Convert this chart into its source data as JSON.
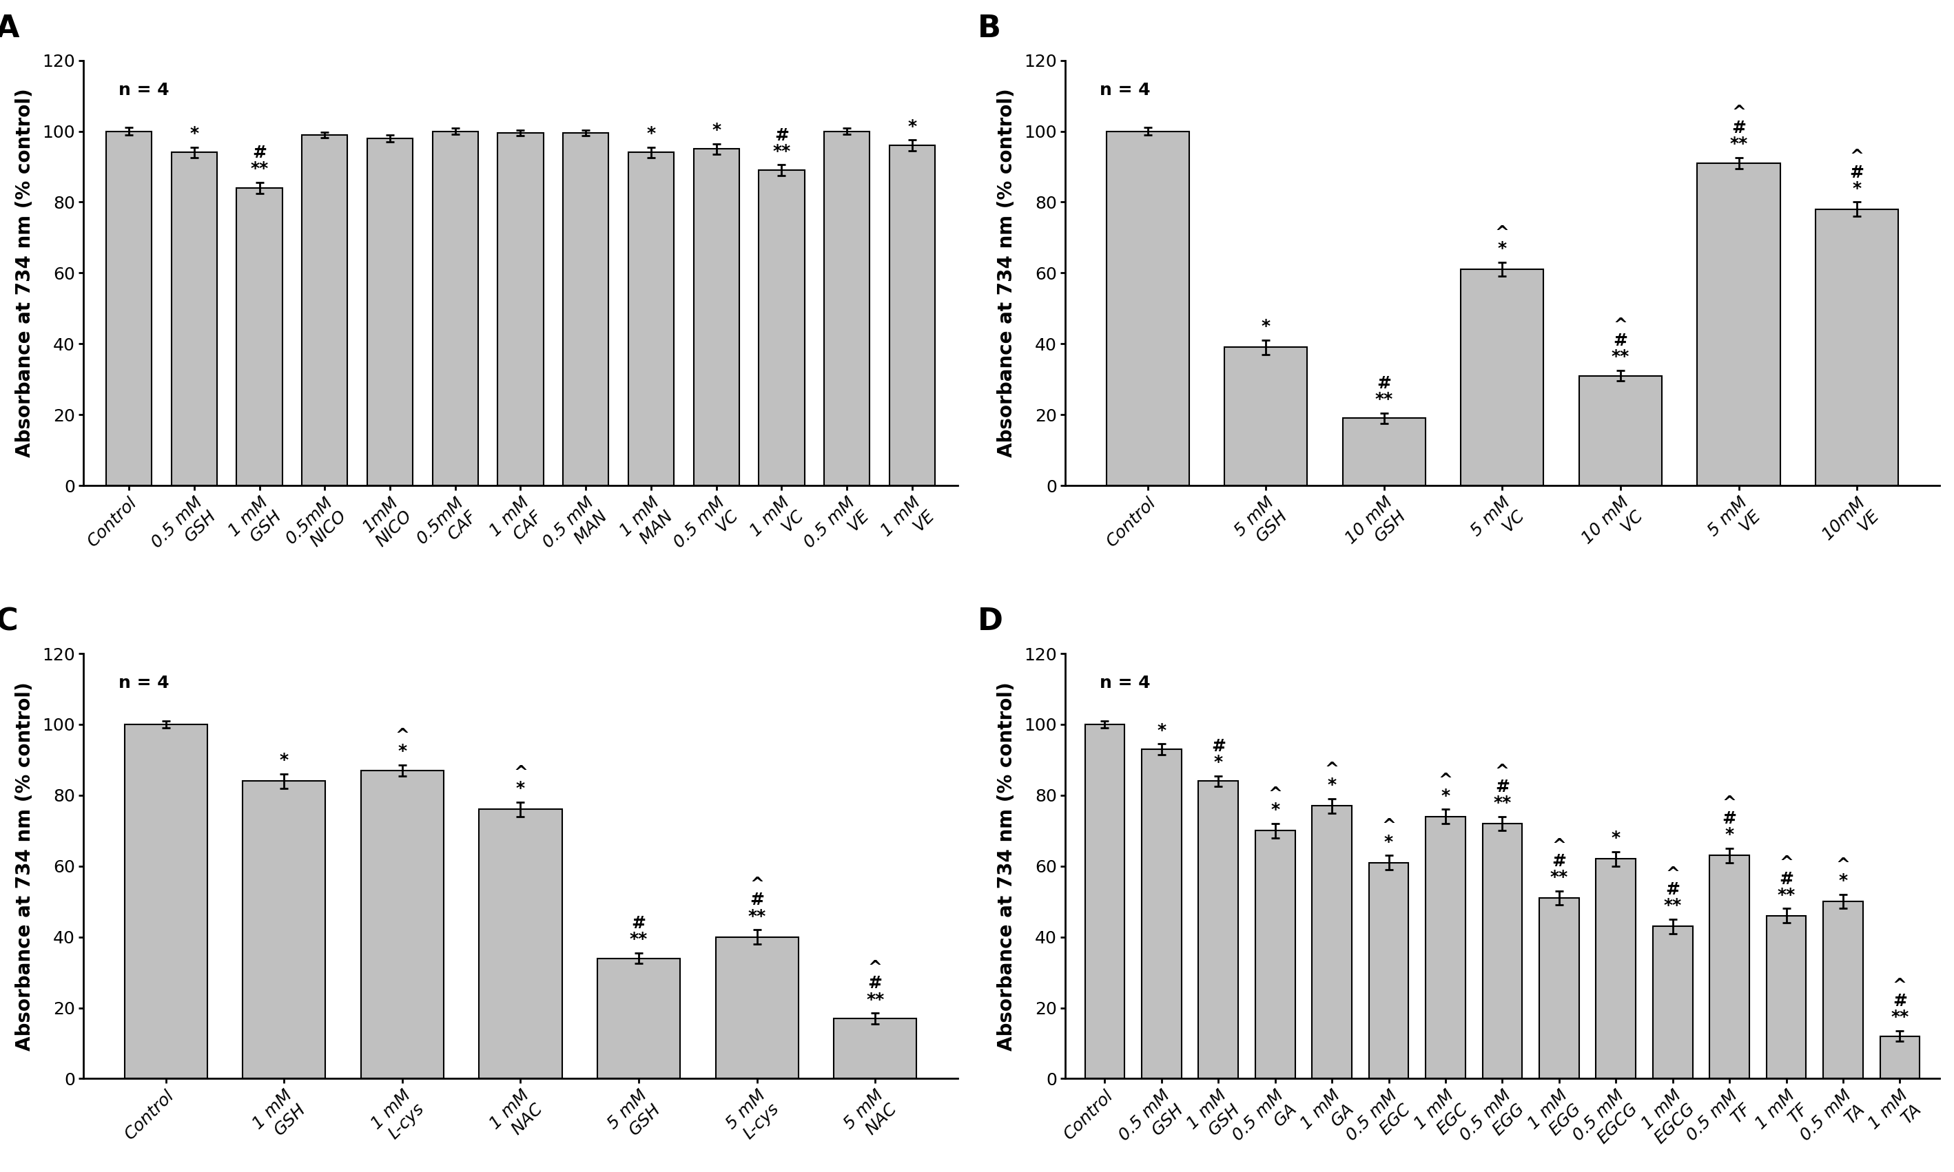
{
  "panel_A": {
    "label": "A",
    "categories": [
      "Control",
      "0.5 mM\nGSH",
      "1 mM\nGSH",
      "0.5mM\nNICO",
      "1mM\nNICO",
      "0.5mM\nCAF",
      "1 mM\nCAF",
      "0.5 mM\nMAN",
      "1 mM\nMAN",
      "0.5 mM\nVC",
      "1 mM\nVC",
      "0.5 mM\nVE",
      "1 mM\nVE"
    ],
    "values": [
      100,
      94,
      84,
      99,
      98,
      100,
      99.5,
      99.5,
      94,
      95,
      89,
      100,
      96
    ],
    "errors": [
      1.0,
      1.5,
      1.5,
      0.8,
      1.0,
      0.8,
      0.8,
      0.8,
      1.5,
      1.5,
      1.5,
      0.8,
      1.5
    ],
    "ann": {
      "1": [
        "*"
      ],
      "2": [
        "#",
        "**"
      ],
      "8": [
        "*"
      ],
      "9": [
        "*"
      ],
      "10": [
        "#",
        "**"
      ],
      "12": [
        "*"
      ]
    },
    "ylim": [
      0,
      120
    ],
    "yticks": [
      0,
      20,
      40,
      60,
      80,
      100,
      120
    ],
    "note": "n = 4"
  },
  "panel_B": {
    "label": "B",
    "categories": [
      "Control",
      "5 mM\nGSH",
      "10 mM\nGSH",
      "5 mM\nVC",
      "10 mM\nVC",
      "5 mM\nVE",
      "10mM\nVE"
    ],
    "values": [
      100,
      39,
      19,
      61,
      31,
      91,
      78
    ],
    "errors": [
      1.0,
      2.0,
      1.5,
      2.0,
      1.5,
      1.5,
      2.0
    ],
    "ann": {
      "1": [
        "*"
      ],
      "2": [
        "#",
        "**"
      ],
      "3": [
        "^",
        "*"
      ],
      "4": [
        "^",
        "#",
        "**"
      ],
      "5": [
        "^",
        "#",
        "**"
      ],
      "6": [
        "^",
        "#",
        "*"
      ]
    },
    "ylim": [
      0,
      120
    ],
    "yticks": [
      0,
      20,
      40,
      60,
      80,
      100,
      120
    ],
    "note": "n = 4"
  },
  "panel_C": {
    "label": "C",
    "categories": [
      "Control",
      "1 mM\nGSH",
      "1 mM\nL-cys",
      "1 mM\nNAC",
      "5 mM\nGSH",
      "5 mM\nL-cys",
      "5 mM\nNAC"
    ],
    "values": [
      100,
      84,
      87,
      76,
      34,
      40,
      17
    ],
    "errors": [
      1.0,
      2.0,
      1.5,
      2.0,
      1.5,
      2.0,
      1.5
    ],
    "ann": {
      "1": [
        "*"
      ],
      "2": [
        "^",
        "*"
      ],
      "3": [
        "^",
        "*"
      ],
      "4": [
        "#",
        "**"
      ],
      "5": [
        "^",
        "#",
        "**"
      ],
      "6": [
        "^",
        "#",
        "**"
      ]
    },
    "ylim": [
      0,
      120
    ],
    "yticks": [
      0,
      20,
      40,
      60,
      80,
      100,
      120
    ],
    "note": "n = 4"
  },
  "panel_D": {
    "label": "D",
    "categories": [
      "Control",
      "0.5 mM\nGSH",
      "1 mM\nGSH",
      "0.5 mM\nGA",
      "1 mM\nGA",
      "0.5 mM\nEGC",
      "1 mM\nEGC",
      "0.5 mM\nEGG",
      "1 mM\nEGG",
      "0.5 mM\nEGCG",
      "1 mM\nEGCG",
      "0.5 mM\nTF",
      "1 mM\nTF",
      "0.5 mM\nTA",
      "1 mM\nTA"
    ],
    "values": [
      100,
      93,
      84,
      70,
      77,
      61,
      74,
      72,
      51,
      62,
      43,
      63,
      46,
      50,
      12
    ],
    "errors": [
      1.0,
      1.5,
      1.5,
      2.0,
      2.0,
      2.0,
      2.0,
      2.0,
      2.0,
      2.0,
      2.0,
      2.0,
      2.0,
      2.0,
      1.5
    ],
    "ann": {
      "1": [
        "*"
      ],
      "2": [
        "#",
        "*"
      ],
      "3": [
        "^",
        "*"
      ],
      "4": [
        "^",
        "*"
      ],
      "5": [
        "^",
        "*"
      ],
      "6": [
        "^",
        "*"
      ],
      "7": [
        "^",
        "#",
        "**"
      ],
      "8": [
        "^",
        "#",
        "**"
      ],
      "9": [
        "*"
      ],
      "10": [
        "^",
        "#",
        "**"
      ],
      "11": [
        "^",
        "#",
        "*"
      ],
      "12": [
        "^",
        "#",
        "**"
      ],
      "13": [
        "^",
        "*"
      ],
      "14": [
        "^",
        "#",
        "**"
      ]
    },
    "ylim": [
      0,
      120
    ],
    "yticks": [
      0,
      20,
      40,
      60,
      80,
      100,
      120
    ],
    "note": "n = 4"
  },
  "bar_color": "#c0c0c0",
  "bar_edgecolor": "#000000",
  "ylabel": "Absorbance at 734 nm (% control)",
  "background_color": "#ffffff",
  "bar_width": 0.7,
  "tick_fontsize": 18,
  "xlabel_fontsize": 18,
  "ylabel_fontsize": 20,
  "annot_fontsize": 18,
  "panel_label_fontsize": 32,
  "note_fontsize": 18
}
